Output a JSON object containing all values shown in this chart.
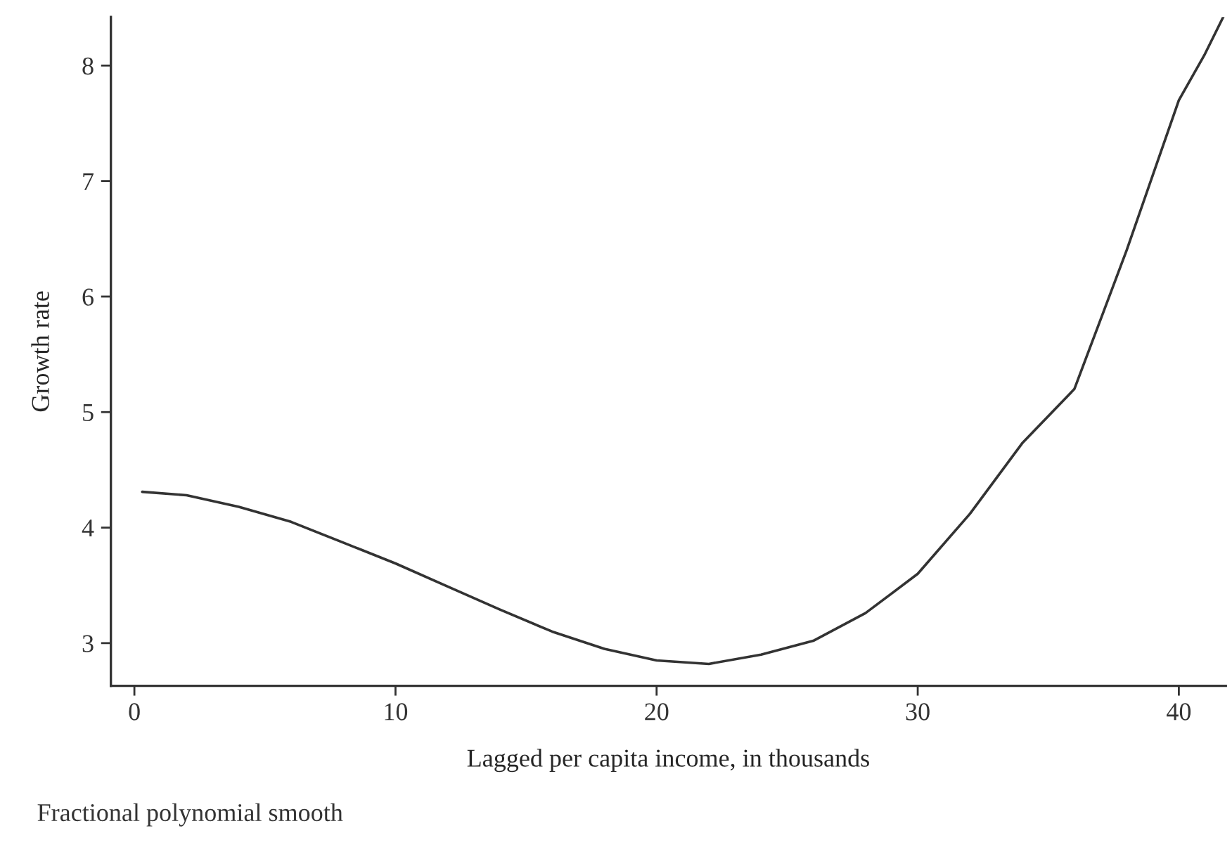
{
  "chart_data": {
    "type": "line",
    "xlabel": "Lagged per capita income, in thousands",
    "ylabel": "Growth rate",
    "annotations": [
      "Fractional polynomial smooth"
    ],
    "xlim": [
      -0.9,
      41.8
    ],
    "ylim": [
      2.63,
      8.42
    ],
    "xticks": [
      0,
      10,
      20,
      30,
      40
    ],
    "yticks": [
      3,
      4,
      5,
      6,
      7,
      8
    ],
    "grid": false,
    "legend": false,
    "line_style": "solid",
    "marker": "none",
    "series": [
      {
        "color": "#333333",
        "x": [
          0.3,
          2,
          4,
          6,
          8,
          10,
          12,
          14,
          16,
          18,
          20,
          22,
          24,
          26,
          28,
          30,
          32,
          34,
          36,
          37,
          38,
          39,
          40,
          41,
          41.7
        ],
        "values": [
          4.31,
          4.28,
          4.18,
          4.05,
          3.87,
          3.69,
          3.49,
          3.29,
          3.1,
          2.95,
          2.85,
          2.82,
          2.9,
          3.02,
          3.26,
          3.6,
          4.12,
          4.73,
          5.2,
          5.8,
          6.4,
          7.05,
          7.7,
          8.1,
          8.42
        ]
      }
    ]
  }
}
